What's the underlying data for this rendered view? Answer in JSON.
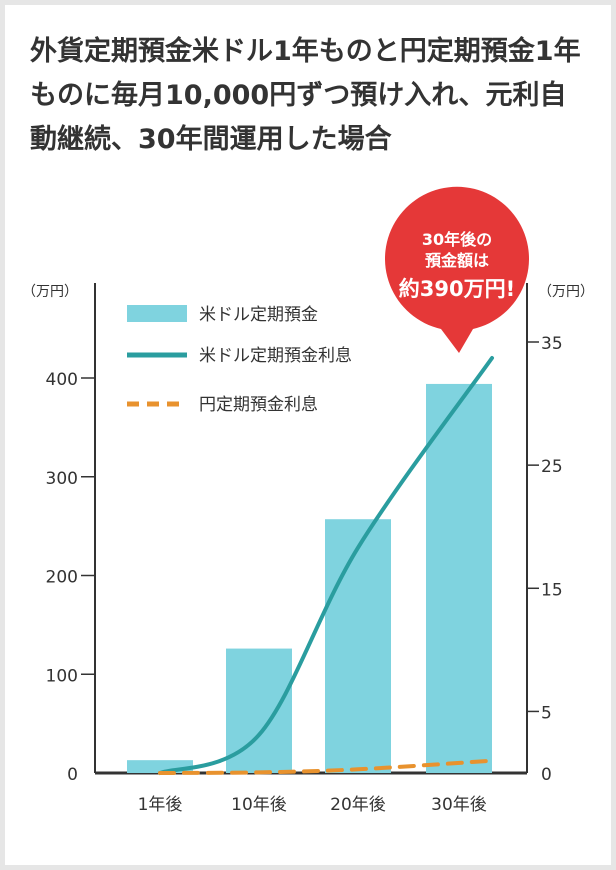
{
  "title": "外貨定期預金米ドル1年ものと円定期預金1年ものに毎月10,000円ずつ預け入れ、元利自動継続、30年間運用した場合",
  "callout": {
    "line1": "30年後の",
    "line2": "預金額は",
    "line3": "約390万円!",
    "color": "#e53838"
  },
  "chart_data": {
    "type": "bar",
    "categories": [
      "1年後",
      "10年後",
      "20年後",
      "30年後"
    ],
    "y_left": {
      "unit": "（万円）",
      "ylim": [
        0,
        400
      ],
      "ticks": [
        0,
        100,
        200,
        300,
        400
      ]
    },
    "y_right": {
      "unit": "（万円）",
      "ylim": [
        0,
        35
      ],
      "ticks": [
        0,
        5,
        15,
        25,
        35
      ]
    },
    "grid": false,
    "legend_position": "top-left",
    "series": [
      {
        "name": "米ドル定期預金",
        "type": "bar",
        "axis": "left",
        "color": "#7fd3df",
        "values": [
          13,
          126,
          257,
          394
        ]
      },
      {
        "name": "米ドル定期預金利息",
        "type": "line",
        "axis": "right",
        "color": "#2a9d9f",
        "values": [
          0.0,
          3.1,
          18.3,
          33.7
        ]
      },
      {
        "name": "円定期預金利息",
        "type": "line-dashed",
        "axis": "right",
        "color": "#e8922e",
        "values": [
          0.0,
          0.05,
          0.3,
          1.0
        ]
      }
    ]
  }
}
